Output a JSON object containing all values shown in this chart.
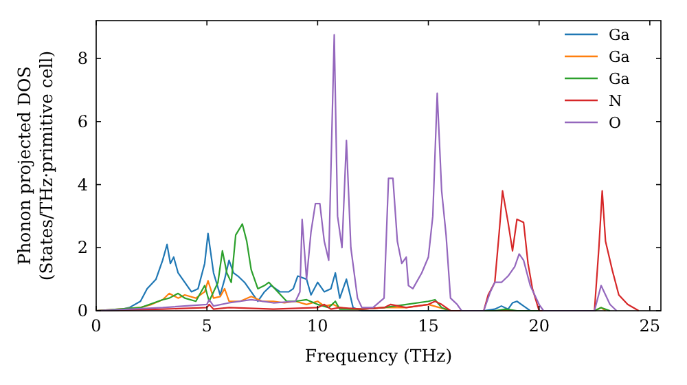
{
  "chart_data": {
    "type": "line",
    "xlabel": "Frequency (THz)",
    "ylabel": "Phonon projected DOS\n(States/THz·primitive cell)",
    "xlim": [
      0,
      25.5
    ],
    "ylim": [
      0,
      9.2
    ],
    "xticks": [
      0,
      5,
      10,
      15,
      20,
      25
    ],
    "yticks": [
      0,
      2,
      4,
      6,
      8
    ],
    "legend": "top right",
    "grid": false,
    "series": [
      {
        "name": "Ga",
        "color": "#1f77b4",
        "x": [
          0,
          1,
          1.5,
          2,
          2.3,
          2.7,
          3,
          3.2,
          3.35,
          3.5,
          3.7,
          4,
          4.3,
          4.6,
          4.9,
          5.05,
          5.3,
          5.6,
          5.8,
          6,
          6.2,
          6.4,
          6.7,
          7,
          7.3,
          7.6,
          7.9,
          8.3,
          8.7,
          8.9,
          9.1,
          9.5,
          9.7,
          10,
          10.3,
          10.6,
          10.8,
          11,
          11.3,
          11.6,
          12,
          17.5,
          18,
          18.3,
          18.6,
          18.8,
          19,
          19.3,
          19.6,
          22.5
        ],
        "values": [
          0,
          0.02,
          0.1,
          0.3,
          0.7,
          1,
          1.6,
          2.1,
          1.5,
          1.7,
          1.2,
          0.9,
          0.6,
          0.7,
          1.5,
          2.45,
          1.2,
          0.5,
          1,
          1.6,
          1.2,
          1.1,
          0.9,
          0.6,
          0.3,
          0.6,
          0.8,
          0.6,
          0.6,
          0.7,
          1.1,
          1,
          0.5,
          0.9,
          0.6,
          0.7,
          1.2,
          0.4,
          1,
          0.1,
          0,
          0,
          0.05,
          0.15,
          0.05,
          0.25,
          0.3,
          0.15,
          0,
          0
        ]
      },
      {
        "name": "Ga",
        "color": "#ff7f0e",
        "x": [
          0,
          2,
          2.5,
          3,
          3.3,
          3.7,
          4,
          4.5,
          4.9,
          5.05,
          5.3,
          5.6,
          5.8,
          6,
          6.5,
          7,
          7.5,
          8,
          8.5,
          9,
          9.5,
          10,
          10.3,
          10.7,
          11,
          11.5,
          12,
          13,
          14,
          15,
          15.5,
          16,
          22.5,
          22.8,
          23
        ],
        "values": [
          0,
          0.1,
          0.2,
          0.35,
          0.55,
          0.4,
          0.5,
          0.4,
          0.6,
          0.95,
          0.4,
          0.45,
          0.7,
          0.3,
          0.3,
          0.45,
          0.3,
          0.3,
          0.25,
          0.3,
          0.2,
          0.3,
          0.15,
          0.2,
          0.1,
          0.05,
          0.05,
          0.1,
          0.1,
          0.2,
          0.1,
          0,
          0,
          0.1,
          0
        ]
      },
      {
        "name": "Ga",
        "color": "#2ca02c",
        "x": [
          0,
          2,
          3,
          3.3,
          3.7,
          4,
          4.5,
          4.9,
          5.1,
          5.5,
          5.7,
          5.9,
          6.1,
          6.3,
          6.6,
          6.8,
          7,
          7.3,
          7.6,
          7.8,
          8.2,
          8.6,
          9,
          9.5,
          10,
          10.5,
          10.8,
          11,
          12,
          13,
          14,
          15,
          15.3,
          15.6,
          16,
          18,
          18.5,
          19,
          22.5,
          22.8,
          23.2
        ],
        "values": [
          0,
          0.1,
          0.35,
          0.4,
          0.55,
          0.4,
          0.3,
          0.8,
          0.3,
          0.9,
          1.9,
          1.2,
          0.9,
          2.4,
          2.75,
          2.2,
          1.3,
          0.7,
          0.8,
          0.9,
          0.6,
          0.3,
          0.3,
          0.35,
          0.2,
          0.1,
          0.3,
          0.05,
          0.05,
          0.1,
          0.2,
          0.3,
          0.35,
          0.1,
          0,
          0,
          0.05,
          0,
          0,
          0.1,
          0
        ]
      },
      {
        "name": "N",
        "color": "#d62728",
        "x": [
          0,
          3,
          5,
          5.1,
          5.3,
          6,
          8,
          10,
          10.3,
          10.6,
          11,
          12,
          13,
          13.3,
          14,
          15,
          15.3,
          15.6,
          16,
          17.5,
          17.7,
          18,
          18.2,
          18.35,
          18.6,
          18.8,
          19,
          19.3,
          19.5,
          19.7,
          20,
          22.5,
          22.7,
          22.85,
          23,
          23.3,
          23.6,
          24,
          24.5
        ],
        "values": [
          0,
          0.05,
          0.1,
          0.2,
          0.05,
          0.1,
          0.05,
          0.1,
          0.2,
          0.05,
          0.1,
          0.05,
          0.1,
          0.2,
          0.1,
          0.2,
          0.3,
          0.2,
          0,
          0,
          0.5,
          0.9,
          2.5,
          3.8,
          2.8,
          1.9,
          2.9,
          2.8,
          1.5,
          0.7,
          0,
          0,
          2,
          3.8,
          2.2,
          1.3,
          0.5,
          0.2,
          0
        ]
      },
      {
        "name": "O",
        "color": "#9467bd",
        "x": [
          0,
          3,
          5,
          5.1,
          5.3,
          6,
          7,
          8,
          9,
          9.2,
          9.3,
          9.5,
          9.7,
          9.9,
          10.1,
          10.3,
          10.5,
          10.75,
          10.9,
          11.1,
          11.3,
          11.5,
          11.8,
          12,
          12.5,
          13,
          13.2,
          13.4,
          13.6,
          13.8,
          14,
          14.1,
          14.3,
          14.7,
          15,
          15.2,
          15.4,
          15.6,
          15.8,
          16,
          16.3,
          16.5,
          17.5,
          17.8,
          18,
          18.3,
          18.6,
          18.9,
          19.1,
          19.3,
          19.6,
          20,
          20.2,
          22.5,
          22.8,
          23.2,
          23.5
        ],
        "values": [
          0,
          0.1,
          0.2,
          0.35,
          0.15,
          0.25,
          0.35,
          0.25,
          0.3,
          0.6,
          2.9,
          1,
          2.5,
          3.4,
          3.4,
          2.2,
          1.6,
          8.75,
          3,
          2,
          5.4,
          2,
          0.4,
          0.1,
          0.1,
          0.4,
          4.2,
          4.2,
          2.2,
          1.5,
          1.7,
          0.8,
          0.7,
          1.2,
          1.7,
          3,
          6.9,
          3.8,
          2.4,
          0.4,
          0.2,
          0,
          0,
          0.6,
          0.9,
          0.9,
          1.1,
          1.4,
          1.8,
          1.6,
          0.8,
          0.2,
          0,
          0,
          0.8,
          0.2,
          0
        ]
      }
    ]
  }
}
